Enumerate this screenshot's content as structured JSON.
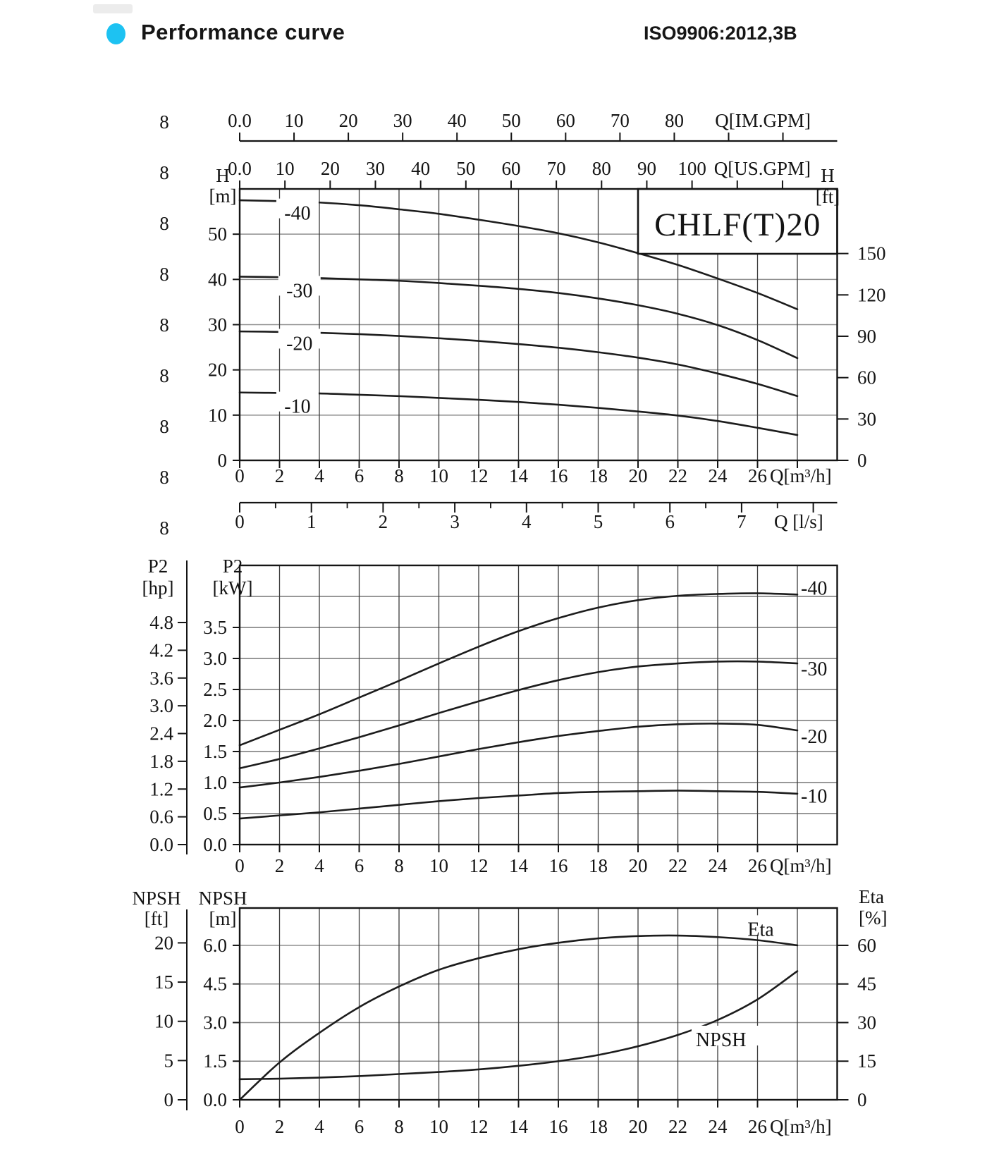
{
  "header": {
    "title": "Performance curve",
    "standard": "ISO9906:2012,3B",
    "bullet_color": "#1dc2f2"
  },
  "watermark_column": {
    "char": "8",
    "count": 9
  },
  "chart_data": {
    "type": "line",
    "model": "CHLF(T)20",
    "x_axis": {
      "unit_label": "Q[m³/h]",
      "tick_labels": [
        "0",
        "2",
        "4",
        "6",
        "8",
        "10",
        "12",
        "14",
        "16",
        "18",
        "20",
        "22",
        "24",
        "26"
      ],
      "tick_values": [
        0,
        2,
        4,
        6,
        8,
        10,
        12,
        14,
        16,
        18,
        20,
        22,
        24,
        26
      ],
      "extra_tick_values": [
        28
      ],
      "range": [
        0,
        30
      ],
      "gridline_step": 2
    },
    "charts": [
      {
        "id": "head_flow",
        "title_box": "CHLF(T)20",
        "y_left": {
          "header": [
            "H",
            "[m]"
          ],
          "labels": [
            "0",
            "10",
            "20",
            "30",
            "40",
            "50"
          ],
          "values": [
            0,
            10,
            20,
            30,
            40,
            50
          ],
          "range": [
            0,
            60
          ],
          "gridlines": [
            10,
            20,
            30,
            40,
            50
          ]
        },
        "y_right": {
          "header": [
            "H",
            "[ft]"
          ],
          "labels": [
            "0",
            "30",
            "60",
            "90",
            "120",
            "150"
          ],
          "values": [
            0,
            30,
            60,
            90,
            120,
            150
          ],
          "m_per_unit": 0.3048
        },
        "ruler_im_gpm": {
          "label": "Q[IM.GPM]",
          "labels": [
            "0.0",
            "10",
            "20",
            "30",
            "40",
            "50",
            "60",
            "70",
            "80"
          ],
          "tick_values": [
            0,
            10,
            20,
            30,
            40,
            50,
            60,
            70,
            80,
            90,
            100
          ],
          "m3h_per_unit": 0.27276
        },
        "ruler_us_gpm": {
          "label": "Q[US.GPM]",
          "labels": [
            "0.0",
            "10",
            "20",
            "30",
            "40",
            "50",
            "60",
            "70",
            "80",
            "90",
            "100"
          ],
          "tick_values": [
            0,
            10,
            20,
            30,
            40,
            50,
            60,
            70,
            80,
            90,
            100,
            110,
            120
          ],
          "m3h_per_unit": 0.22712
        },
        "ruler_ls": {
          "label": "Q [l/s]",
          "labels": [
            "0",
            "1",
            "2",
            "3",
            "4",
            "5",
            "6",
            "7"
          ],
          "major_values": [
            0,
            1,
            2,
            3,
            4,
            5,
            6,
            7,
            8
          ],
          "minor_step": 0.5,
          "m3h_per_unit": 3.6
        },
        "series": [
          {
            "name": "-40",
            "label_at": [
              2.9,
              54.6
            ],
            "points": [
              [
                0,
                57.5
              ],
              [
                2,
                57.3
              ],
              [
                4,
                57.0
              ],
              [
                6,
                56.4
              ],
              [
                8,
                55.5
              ],
              [
                10,
                54.5
              ],
              [
                12,
                53.2
              ],
              [
                14,
                51.8
              ],
              [
                16,
                50.2
              ],
              [
                18,
                48.2
              ],
              [
                20,
                45.8
              ],
              [
                22,
                43.2
              ],
              [
                24,
                40.2
              ],
              [
                26,
                37.0
              ],
              [
                28,
                33.4
              ]
            ]
          },
          {
            "name": "-30",
            "label_at": [
              3.0,
              37.5
            ],
            "points": [
              [
                0,
                40.6
              ],
              [
                2,
                40.5
              ],
              [
                4,
                40.3
              ],
              [
                6,
                40.0
              ],
              [
                8,
                39.7
              ],
              [
                10,
                39.2
              ],
              [
                12,
                38.6
              ],
              [
                14,
                37.9
              ],
              [
                16,
                37.0
              ],
              [
                18,
                35.8
              ],
              [
                20,
                34.3
              ],
              [
                22,
                32.4
              ],
              [
                24,
                29.9
              ],
              [
                26,
                26.6
              ],
              [
                28,
                22.6
              ]
            ]
          },
          {
            "name": "-20",
            "label_at": [
              3.0,
              25.8
            ],
            "points": [
              [
                0,
                28.5
              ],
              [
                2,
                28.4
              ],
              [
                4,
                28.2
              ],
              [
                6,
                27.9
              ],
              [
                8,
                27.5
              ],
              [
                10,
                27.0
              ],
              [
                12,
                26.4
              ],
              [
                14,
                25.7
              ],
              [
                16,
                24.9
              ],
              [
                18,
                23.9
              ],
              [
                20,
                22.7
              ],
              [
                22,
                21.2
              ],
              [
                24,
                19.2
              ],
              [
                26,
                16.9
              ],
              [
                28,
                14.2
              ]
            ]
          },
          {
            "name": "-10",
            "label_at": [
              2.9,
              11.9
            ],
            "points": [
              [
                0,
                15.0
              ],
              [
                2,
                14.9
              ],
              [
                4,
                14.8
              ],
              [
                6,
                14.5
              ],
              [
                8,
                14.2
              ],
              [
                10,
                13.8
              ],
              [
                12,
                13.4
              ],
              [
                14,
                12.9
              ],
              [
                16,
                12.3
              ],
              [
                18,
                11.6
              ],
              [
                20,
                10.8
              ],
              [
                22,
                9.9
              ],
              [
                24,
                8.7
              ],
              [
                26,
                7.2
              ],
              [
                28,
                5.6
              ]
            ]
          }
        ]
      },
      {
        "id": "power_flow",
        "y_left": {
          "header": [
            "P2",
            "[kW]"
          ],
          "labels": [
            "0.0",
            "0.5",
            "1.0",
            "1.5",
            "2.0",
            "2.5",
            "3.0",
            "3.5"
          ],
          "values": [
            0,
            0.5,
            1.0,
            1.5,
            2.0,
            2.5,
            3.0,
            3.5
          ],
          "range": [
            0,
            4.5
          ],
          "gridlines": [
            0.5,
            1.0,
            1.5,
            2.0,
            2.5,
            3.0,
            3.5,
            4.0
          ]
        },
        "y_far_left": {
          "header": [
            "P2",
            "[hp]"
          ],
          "labels": [
            "0.0",
            "0.6",
            "1.2",
            "1.8",
            "2.4",
            "3.0",
            "3.6",
            "4.2",
            "4.8"
          ],
          "values": [
            0,
            0.6,
            1.2,
            1.8,
            2.4,
            3.0,
            3.6,
            4.2,
            4.8
          ],
          "kw_per_unit": 0.7457
        },
        "series": [
          {
            "name": "-40",
            "label_kw": 4.13,
            "points": [
              [
                0,
                1.6
              ],
              [
                2,
                1.85
              ],
              [
                4,
                2.1
              ],
              [
                6,
                2.37
              ],
              [
                8,
                2.64
              ],
              [
                10,
                2.92
              ],
              [
                12,
                3.19
              ],
              [
                14,
                3.44
              ],
              [
                16,
                3.65
              ],
              [
                18,
                3.82
              ],
              [
                20,
                3.94
              ],
              [
                22,
                4.01
              ],
              [
                24,
                4.04
              ],
              [
                26,
                4.05
              ],
              [
                28,
                4.03
              ]
            ]
          },
          {
            "name": "-30",
            "label_kw": 2.83,
            "points": [
              [
                0,
                1.23
              ],
              [
                2,
                1.38
              ],
              [
                4,
                1.55
              ],
              [
                6,
                1.73
              ],
              [
                8,
                1.92
              ],
              [
                10,
                2.12
              ],
              [
                12,
                2.31
              ],
              [
                14,
                2.49
              ],
              [
                16,
                2.65
              ],
              [
                18,
                2.78
              ],
              [
                20,
                2.87
              ],
              [
                22,
                2.92
              ],
              [
                24,
                2.95
              ],
              [
                26,
                2.95
              ],
              [
                28,
                2.92
              ]
            ]
          },
          {
            "name": "-20",
            "label_kw": 1.74,
            "points": [
              [
                0,
                0.92
              ],
              [
                2,
                1.0
              ],
              [
                4,
                1.09
              ],
              [
                6,
                1.19
              ],
              [
                8,
                1.3
              ],
              [
                10,
                1.42
              ],
              [
                12,
                1.54
              ],
              [
                14,
                1.65
              ],
              [
                16,
                1.75
              ],
              [
                18,
                1.83
              ],
              [
                20,
                1.9
              ],
              [
                22,
                1.94
              ],
              [
                24,
                1.95
              ],
              [
                26,
                1.93
              ],
              [
                28,
                1.84
              ]
            ]
          },
          {
            "name": "-10",
            "label_kw": 0.78,
            "points": [
              [
                0,
                0.42
              ],
              [
                2,
                0.47
              ],
              [
                4,
                0.52
              ],
              [
                6,
                0.58
              ],
              [
                8,
                0.64
              ],
              [
                10,
                0.7
              ],
              [
                12,
                0.75
              ],
              [
                14,
                0.79
              ],
              [
                16,
                0.83
              ],
              [
                18,
                0.85
              ],
              [
                20,
                0.86
              ],
              [
                22,
                0.87
              ],
              [
                24,
                0.86
              ],
              [
                26,
                0.85
              ],
              [
                28,
                0.82
              ]
            ]
          }
        ]
      },
      {
        "id": "npsh_eta_flow",
        "y_left": {
          "header": [
            "NPSH",
            "[m]"
          ],
          "labels": [
            "0.0",
            "1.5",
            "3.0",
            "4.5",
            "6.0"
          ],
          "values": [
            0,
            1.5,
            3.0,
            4.5,
            6.0
          ],
          "range": [
            0,
            7.45
          ],
          "gridlines": [
            1.5,
            3.0,
            4.5,
            6.0
          ]
        },
        "y_far_left": {
          "header": [
            "NPSH",
            "[ft]"
          ],
          "labels": [
            "0",
            "5",
            "10",
            "15",
            "20"
          ],
          "values": [
            0,
            5,
            10,
            15,
            20
          ],
          "m_per_unit": 0.3048
        },
        "y_right": {
          "header": [
            "Eta",
            "[%]"
          ],
          "labels": [
            "0",
            "15",
            "30",
            "45",
            "60"
          ],
          "values": [
            0,
            15,
            30,
            45,
            60
          ],
          "m_per_pct": 0.1
        },
        "series": [
          {
            "name": "Eta",
            "unit": "%",
            "label_at": [
              25.5,
              6.62
            ],
            "points": [
              [
                0,
                0
              ],
              [
                2,
                14.5
              ],
              [
                4,
                26
              ],
              [
                6,
                36
              ],
              [
                8,
                44
              ],
              [
                10,
                50.5
              ],
              [
                12,
                55
              ],
              [
                14,
                58.5
              ],
              [
                16,
                61
              ],
              [
                18,
                62.7
              ],
              [
                20,
                63.6
              ],
              [
                22,
                63.8
              ],
              [
                24,
                63.2
              ],
              [
                26,
                62
              ],
              [
                28,
                60
              ]
            ]
          },
          {
            "name": "NPSH",
            "unit": "m",
            "label_at": [
              22.9,
              2.33
            ],
            "points": [
              [
                0,
                0.8
              ],
              [
                2,
                0.82
              ],
              [
                4,
                0.86
              ],
              [
                6,
                0.92
              ],
              [
                8,
                1.0
              ],
              [
                10,
                1.08
              ],
              [
                12,
                1.18
              ],
              [
                14,
                1.32
              ],
              [
                16,
                1.5
              ],
              [
                18,
                1.74
              ],
              [
                20,
                2.08
              ],
              [
                22,
                2.52
              ],
              [
                24,
                3.1
              ],
              [
                26,
                3.9
              ],
              [
                28,
                5.0
              ]
            ]
          }
        ]
      }
    ]
  }
}
